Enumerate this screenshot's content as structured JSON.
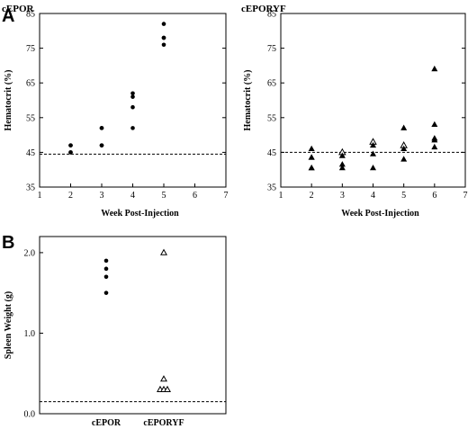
{
  "panel_labels": [
    "A",
    "B"
  ],
  "chart_data": [
    {
      "type": "scatter",
      "title": "cEPOR",
      "xlabel": "Week   Post-Injection",
      "ylabel": "Hematocrit   (%)",
      "xlim": [
        1,
        7
      ],
      "ylim": [
        35,
        85
      ],
      "x_ticks": [
        "1",
        "2",
        "3",
        "4",
        "5",
        "6",
        "7"
      ],
      "y_ticks": [
        "35",
        "45",
        "55",
        "65",
        "75",
        "85"
      ],
      "reference_line": 44.5,
      "marker": "filled-circle",
      "points": [
        {
          "x": 2,
          "y": 47
        },
        {
          "x": 2,
          "y": 47
        },
        {
          "x": 2,
          "y": 45
        },
        {
          "x": 2,
          "y": 45
        },
        {
          "x": 3,
          "y": 52
        },
        {
          "x": 3,
          "y": 52
        },
        {
          "x": 3,
          "y": 47
        },
        {
          "x": 3,
          "y": 47
        },
        {
          "x": 4,
          "y": 62
        },
        {
          "x": 4,
          "y": 61
        },
        {
          "x": 4,
          "y": 58
        },
        {
          "x": 4,
          "y": 52
        },
        {
          "x": 5,
          "y": 82
        },
        {
          "x": 5,
          "y": 78
        },
        {
          "x": 5,
          "y": 78
        },
        {
          "x": 5,
          "y": 76
        }
      ]
    },
    {
      "type": "scatter",
      "title": "cEPORYF",
      "xlabel": "Week   Post-Injection",
      "ylabel": "Hematocrit   (%)",
      "xlim": [
        1,
        7
      ],
      "ylim": [
        35,
        85
      ],
      "x_ticks": [
        "1",
        "2",
        "3",
        "4",
        "5",
        "6",
        "7"
      ],
      "y_ticks": [
        "35",
        "45",
        "55",
        "65",
        "75",
        "85"
      ],
      "reference_line": 45,
      "marker": "triangle",
      "points": [
        {
          "x": 2,
          "y": 46,
          "filled": true
        },
        {
          "x": 2,
          "y": 43.5,
          "filled": true
        },
        {
          "x": 2,
          "y": 43.5,
          "filled": true
        },
        {
          "x": 2,
          "y": 40.5,
          "filled": true
        },
        {
          "x": 2,
          "y": 40.5,
          "filled": true
        },
        {
          "x": 3,
          "y": 45,
          "filled": false
        },
        {
          "x": 3,
          "y": 44,
          "filled": true
        },
        {
          "x": 3,
          "y": 41.5,
          "filled": true
        },
        {
          "x": 3,
          "y": 40.5,
          "filled": true
        },
        {
          "x": 4,
          "y": 48,
          "filled": false
        },
        {
          "x": 4,
          "y": 47,
          "filled": true
        },
        {
          "x": 4,
          "y": 44.5,
          "filled": true
        },
        {
          "x": 4,
          "y": 40.5,
          "filled": true
        },
        {
          "x": 5,
          "y": 52,
          "filled": true
        },
        {
          "x": 5,
          "y": 47,
          "filled": false
        },
        {
          "x": 5,
          "y": 46,
          "filled": true
        },
        {
          "x": 5,
          "y": 43,
          "filled": true
        },
        {
          "x": 6,
          "y": 69,
          "filled": true
        },
        {
          "x": 6,
          "y": 53,
          "filled": true
        },
        {
          "x": 6,
          "y": 49,
          "filled": true
        },
        {
          "x": 6,
          "y": 48.5,
          "filled": true
        },
        {
          "x": 6,
          "y": 46.5,
          "filled": true
        }
      ]
    },
    {
      "type": "scatter",
      "title": "",
      "xlabel": "",
      "ylabel": "Spleen Weight (g)",
      "categories": [
        "cEPOR",
        "cEPORYF"
      ],
      "ylim": [
        0,
        2.2
      ],
      "y_ticks": [
        "0.0",
        "1.0",
        "2.0"
      ],
      "y_tick_values": [
        0,
        1,
        2
      ],
      "reference_line": 0.15,
      "series": [
        {
          "category": "cEPOR",
          "marker": "filled-circle",
          "values": [
            1.9,
            1.8,
            1.7,
            1.5
          ]
        },
        {
          "category": "cEPORYF",
          "marker": "open-triangle",
          "values": [
            2.0,
            0.43,
            0.3,
            0.3,
            0.3
          ]
        }
      ]
    }
  ]
}
